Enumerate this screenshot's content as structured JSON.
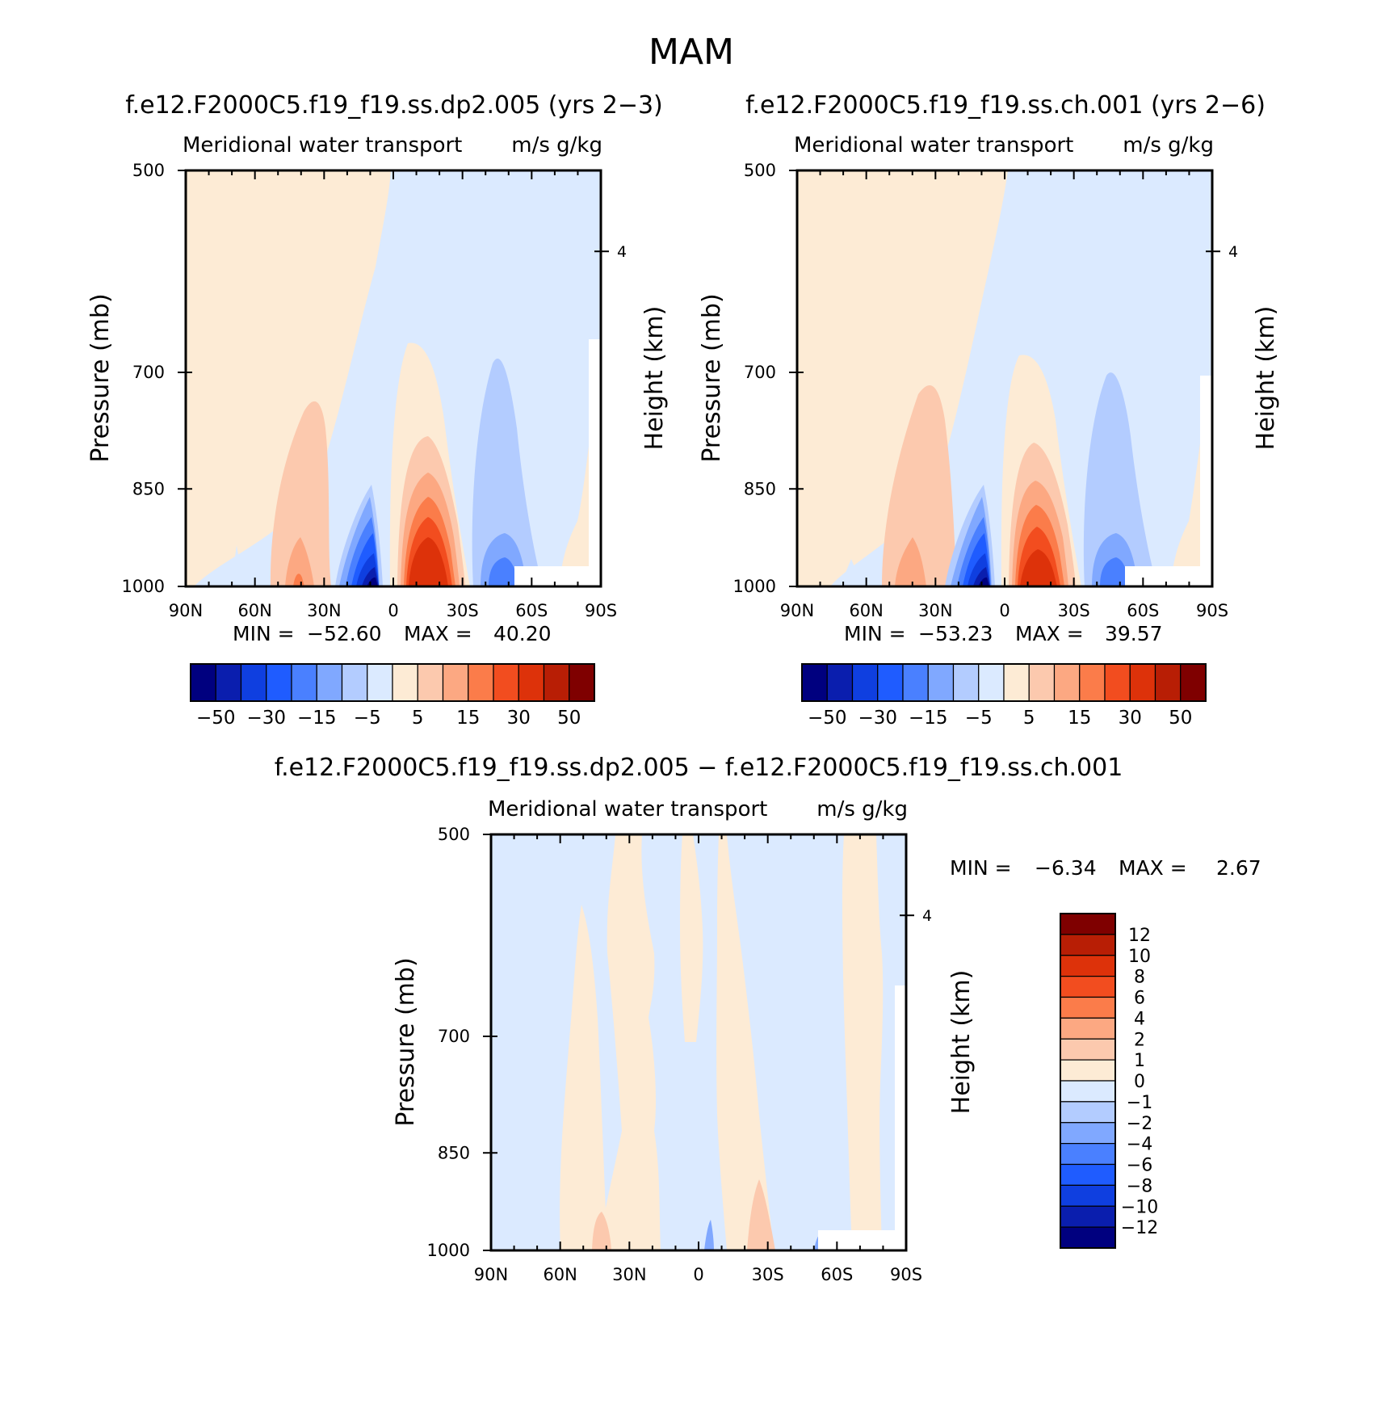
{
  "figure": {
    "season_title": "MAM"
  },
  "chart_data": [
    {
      "type": "heatmap",
      "title": "f.e12.F2000C5.f19_f19.ss.dp2.005 (yrs 2−3)",
      "subtitle_left": "Meridional water transport",
      "subtitle_right": "m/s g/kg",
      "ylabel": "Pressure (mb)",
      "y2label": "Height (km)",
      "xticks": [
        "90N",
        "60N",
        "30N",
        "0",
        "30S",
        "60S",
        "90S"
      ],
      "yticks": [
        "500",
        "700",
        "850",
        "1000"
      ],
      "y2ticks": [
        "4"
      ],
      "stats": {
        "min_label": "MIN =",
        "min": "−52.60",
        "max_label": "MAX =",
        "max": "40.20"
      },
      "colorbar_ticks": [
        "−50",
        "−30",
        "−15",
        "−5",
        "5",
        "15",
        "30",
        "50"
      ]
    },
    {
      "type": "heatmap",
      "title": "f.e12.F2000C5.f19_f19.ss.ch.001 (yrs 2−6)",
      "subtitle_left": "Meridional water transport",
      "subtitle_right": "m/s g/kg",
      "ylabel": "Pressure (mb)",
      "y2label": "Height (km)",
      "xticks": [
        "90N",
        "60N",
        "30N",
        "0",
        "30S",
        "60S",
        "90S"
      ],
      "yticks": [
        "500",
        "700",
        "850",
        "1000"
      ],
      "y2ticks": [
        "4"
      ],
      "stats": {
        "min_label": "MIN =",
        "min": "−53.23",
        "max_label": "MAX =",
        "max": "39.57"
      },
      "colorbar_ticks": [
        "−50",
        "−30",
        "−15",
        "−5",
        "5",
        "15",
        "30",
        "50"
      ]
    },
    {
      "type": "heatmap",
      "title": "f.e12.F2000C5.f19_f19.ss.dp2.005 − f.e12.F2000C5.f19_f19.ss.ch.001",
      "subtitle_left": "Meridional water transport",
      "subtitle_right": "m/s g/kg",
      "ylabel": "Pressure (mb)",
      "y2label": "Height (km)",
      "xticks": [
        "90N",
        "60N",
        "30N",
        "0",
        "30S",
        "60S",
        "90S"
      ],
      "yticks": [
        "500",
        "700",
        "850",
        "1000"
      ],
      "y2ticks": [
        "4"
      ],
      "stats": {
        "min_label": "MIN =",
        "min": "−6.34",
        "max_label": "MAX =",
        "max": "2.67"
      },
      "colorbar_ticks": [
        "12",
        "10",
        "8",
        "6",
        "4",
        "2",
        "1",
        "0",
        "−1",
        "−2",
        "−4",
        "−6",
        "−8",
        "−10",
        "−12"
      ]
    }
  ],
  "colors": {
    "colorbar_16": [
      "#00007f",
      "#0a1eae",
      "#0f3fe0",
      "#1f5cff",
      "#4a80ff",
      "#80a8ff",
      "#b3ccff",
      "#dbeaff",
      "#fdebd5",
      "#fcc9ae",
      "#fca882",
      "#fb7c4a",
      "#f24d1f",
      "#dd320a",
      "#b81e05",
      "#7f0000"
    ]
  }
}
